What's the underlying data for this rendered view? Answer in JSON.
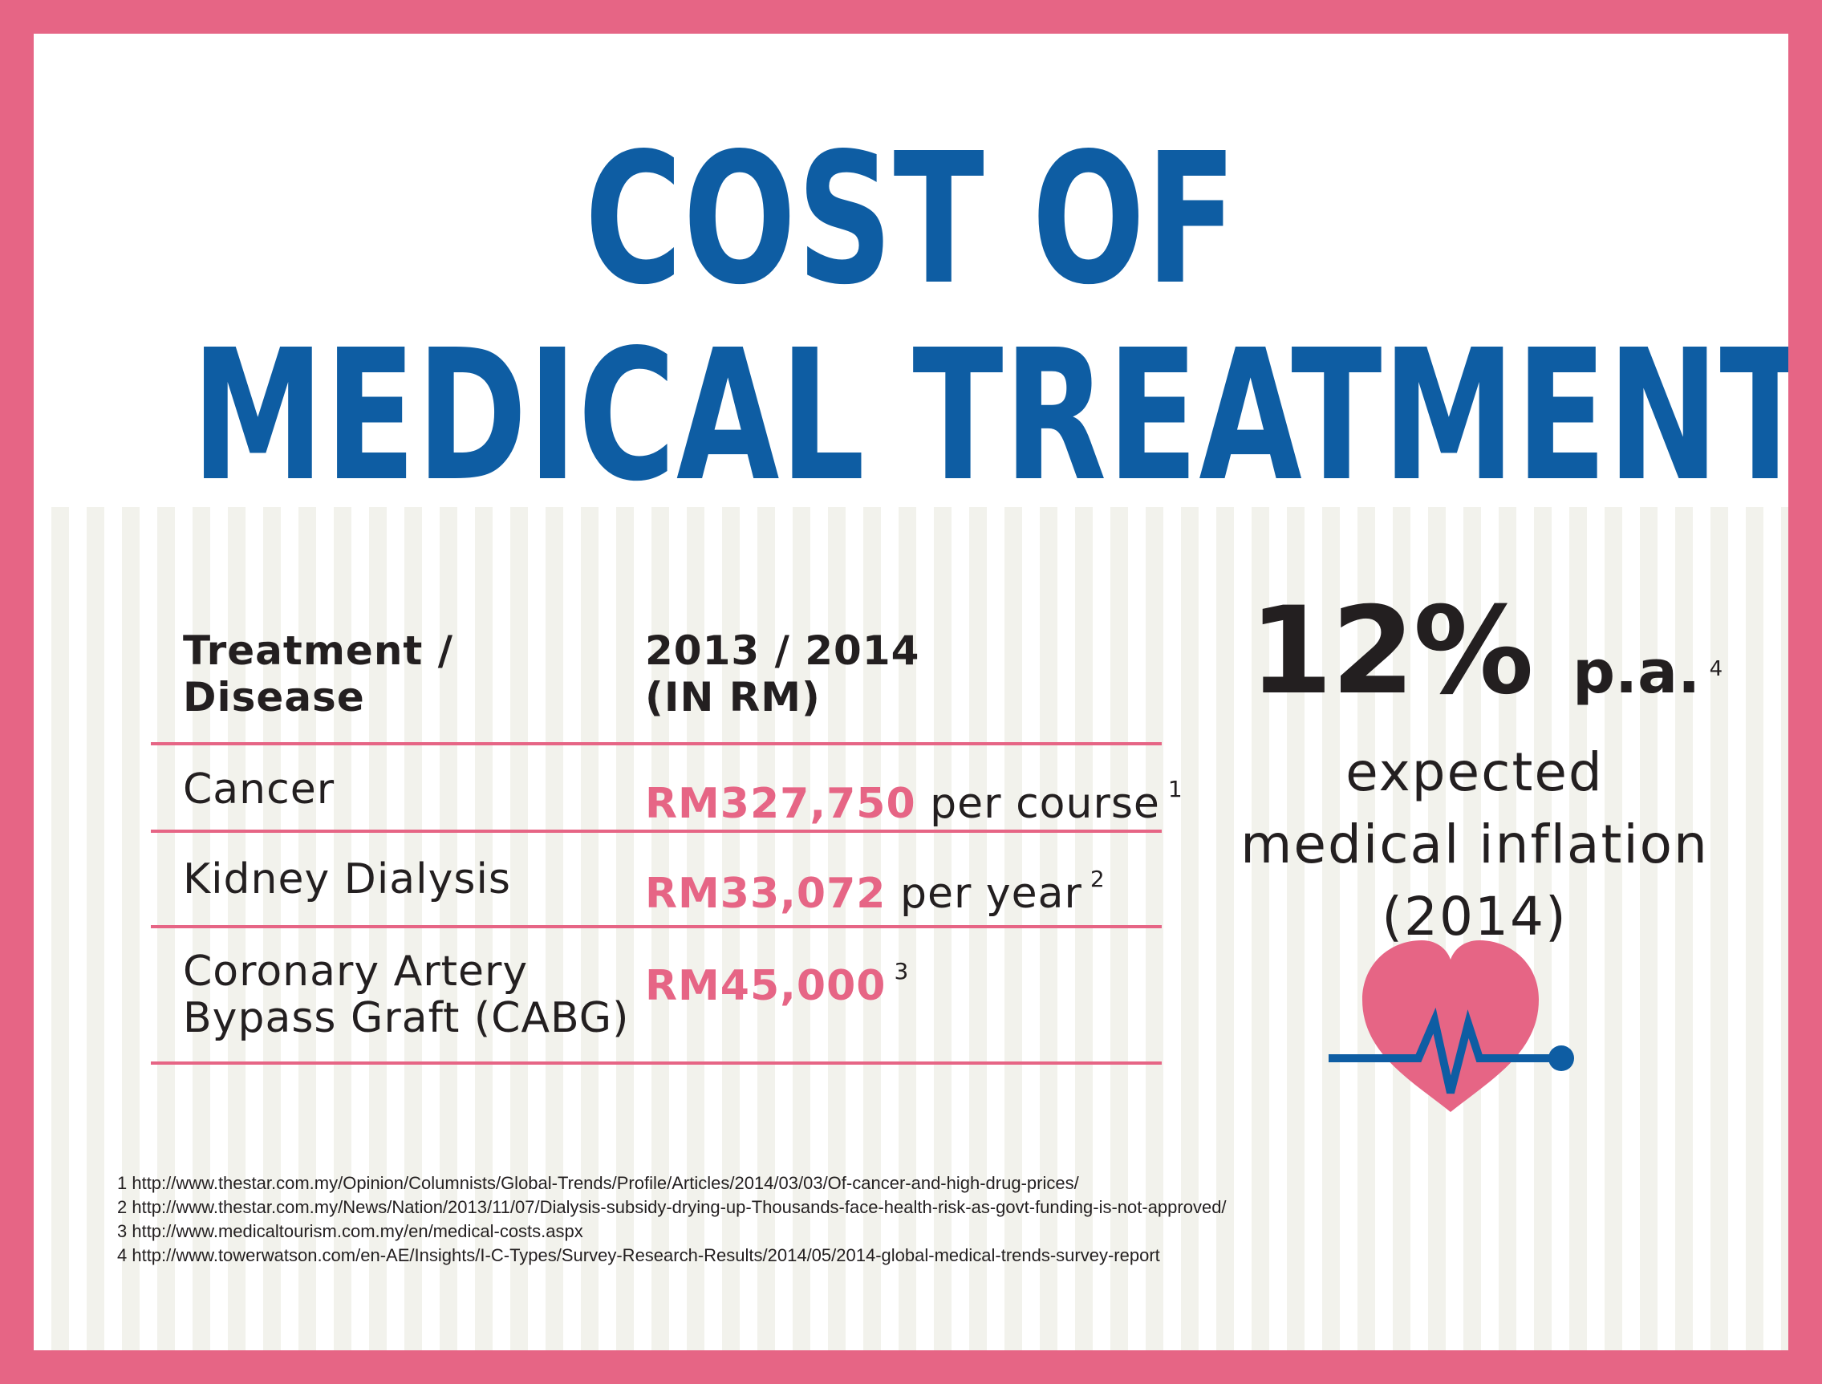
{
  "title": {
    "line1": "COST OF",
    "line2": "MEDICAL TREATMENT"
  },
  "colors": {
    "frame": "#e66585",
    "title": "#0e5da3",
    "accent": "#e66585",
    "text": "#231f20"
  },
  "table": {
    "headers": {
      "col1": "Treatment / Disease",
      "col2": "2013 / 2014 (IN RM)"
    },
    "rows": [
      {
        "name": "Cancer",
        "amount": "RM327,750",
        "unit": "per course",
        "ref": "1"
      },
      {
        "name": "Kidney Dialysis",
        "amount": "RM33,072",
        "unit": "per year",
        "ref": "2"
      },
      {
        "name": "Coronary Artery Bypass Graft (CABG)",
        "amount": "RM45,000",
        "unit": "",
        "ref": "3"
      }
    ]
  },
  "stat": {
    "value": "12%",
    "suffix": "p.a.",
    "ref": "4",
    "desc_line1": "expected",
    "desc_line2": "medical inflation",
    "desc_line3": "(2014)"
  },
  "icon": "heart-pulse-icon",
  "references": [
    "1 http://www.thestar.com.my/Opinion/Columnists/Global-Trends/Profile/Articles/2014/03/03/Of-cancer-and-high-drug-prices/",
    "2 http://www.thestar.com.my/News/Nation/2013/11/07/Dialysis-subsidy-drying-up-Thousands-face-health-risk-as-govt-funding-is-not-approved/",
    "3 http://www.medicaltourism.com.my/en/medical-costs.aspx",
    "4 http://www.towerwatson.com/en-AE/Insights/I-C-Types/Survey-Research-Results/2014/05/2014-global-medical-trends-survey-report"
  ]
}
